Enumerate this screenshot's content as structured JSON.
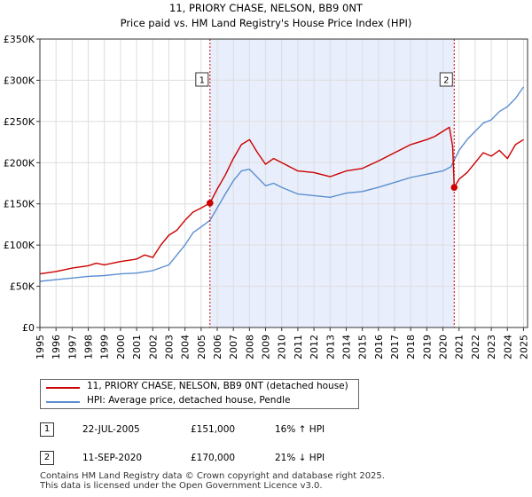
{
  "chart_data": {
    "type": "line",
    "title": "11, PRIORY CHASE, NELSON, BB9 0NT",
    "subtitle": "Price paid vs. HM Land Registry's House Price Index (HPI)",
    "xlim": [
      1995,
      2025.25
    ],
    "ylim": [
      0,
      350000
    ],
    "y_ticks": [
      0,
      50000,
      100000,
      150000,
      200000,
      250000,
      300000,
      350000
    ],
    "y_tick_labels": [
      "£0",
      "£50K",
      "£100K",
      "£150K",
      "£200K",
      "£250K",
      "£300K",
      "£350K"
    ],
    "x_ticks": [
      1995,
      1996,
      1997,
      1998,
      1999,
      2000,
      2001,
      2002,
      2003,
      2004,
      2005,
      2006,
      2007,
      2008,
      2009,
      2010,
      2011,
      2012,
      2013,
      2014,
      2015,
      2016,
      2017,
      2018,
      2019,
      2020,
      2021,
      2022,
      2023,
      2024,
      2025
    ],
    "x_tick_labels": [
      "1995",
      "1996",
      "1997",
      "1998",
      "1999",
      "2000",
      "2001",
      "2002",
      "2003",
      "2004",
      "2005",
      "2006",
      "2007",
      "2008",
      "2009",
      "2010",
      "2011",
      "2012",
      "2013",
      "2014",
      "2015",
      "2016",
      "2017",
      "2018",
      "2019",
      "2020",
      "2021",
      "2022",
      "2023",
      "2024",
      "2025"
    ],
    "shaded_region": [
      2005.55,
      2020.7
    ],
    "colors": {
      "property": "#cc0000",
      "hpi": "#5b8fd0",
      "shade": "#e8eefb",
      "grid": "#dddddd"
    },
    "series": [
      {
        "name": "11, PRIORY CHASE, NELSON, BB9 0NT (detached house)",
        "color": "#cc0000",
        "x": [
          1995,
          1996,
          1997,
          1998,
          1998.5,
          1999,
          2000,
          2001,
          2001.5,
          2002,
          2002.5,
          2003,
          2003.5,
          2004,
          2004.5,
          2005,
          2005.55,
          2006,
          2006.5,
          2007,
          2007.5,
          2008,
          2008.5,
          2009,
          2009.5,
          2010,
          2011,
          2012,
          2013,
          2014,
          2015,
          2016,
          2017,
          2018,
          2019,
          2019.5,
          2020,
          2020.4,
          2020.6,
          2020.7,
          2021,
          2021.5,
          2022,
          2022.5,
          2023,
          2023.5,
          2024,
          2024.5,
          2025
        ],
        "values": [
          65000,
          68000,
          72000,
          75000,
          78000,
          76000,
          80000,
          83000,
          88000,
          85000,
          100000,
          112000,
          118000,
          130000,
          140000,
          145000,
          151000,
          168000,
          185000,
          205000,
          222000,
          228000,
          212000,
          198000,
          205000,
          200000,
          190000,
          188000,
          183000,
          190000,
          193000,
          202000,
          212000,
          222000,
          228000,
          232000,
          238000,
          243000,
          220000,
          170000,
          180000,
          188000,
          200000,
          212000,
          208000,
          215000,
          205000,
          222000,
          228000
        ]
      },
      {
        "name": "HPI: Average price, detached house, Pendle",
        "color": "#5b8fd0",
        "x": [
          1995,
          1996,
          1997,
          1998,
          1999,
          2000,
          2001,
          2002,
          2003,
          2003.5,
          2004,
          2004.5,
          2005,
          2005.55,
          2006,
          2006.5,
          2007,
          2007.5,
          2008,
          2008.5,
          2009,
          2009.5,
          2010,
          2011,
          2012,
          2013,
          2014,
          2015,
          2016,
          2017,
          2018,
          2019,
          2020,
          2020.5,
          2021,
          2021.5,
          2022,
          2022.5,
          2023,
          2023.5,
          2024,
          2024.5,
          2025
        ],
        "values": [
          56000,
          58000,
          60000,
          62000,
          63000,
          65000,
          66000,
          69000,
          76000,
          88000,
          100000,
          115000,
          122000,
          130000,
          145000,
          162000,
          178000,
          190000,
          192000,
          182000,
          172000,
          175000,
          170000,
          162000,
          160000,
          158000,
          163000,
          165000,
          170000,
          176000,
          182000,
          186000,
          190000,
          195000,
          215000,
          228000,
          238000,
          248000,
          252000,
          262000,
          268000,
          278000,
          292000
        ]
      }
    ],
    "markers": [
      {
        "label": "1",
        "x": 2005.55,
        "y": 151000
      },
      {
        "label": "2",
        "x": 2020.7,
        "y": 170000
      }
    ],
    "legend": {
      "placement": "below-chart",
      "entries": [
        "11, PRIORY CHASE, NELSON, BB9 0NT (detached house)",
        "HPI: Average price, detached house, Pendle"
      ]
    }
  },
  "sales": [
    {
      "num": "1",
      "date": "22-JUL-2005",
      "price": "£151,000",
      "hpi": "16% ↑ HPI"
    },
    {
      "num": "2",
      "date": "11-SEP-2020",
      "price": "£170,000",
      "hpi": "21% ↓ HPI"
    }
  ],
  "footer": {
    "line1": "Contains HM Land Registry data © Crown copyright and database right 2025.",
    "line2": "This data is licensed under the Open Government Licence v3.0."
  }
}
